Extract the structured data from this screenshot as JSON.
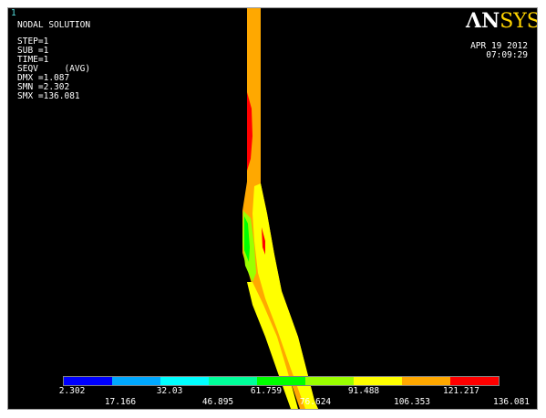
{
  "window": {
    "number": "1"
  },
  "solution_info": {
    "title": "NODAL SOLUTION",
    "lines": [
      "STEP=1",
      "SUB =1",
      "TIME=1",
      "SEQV     (AVG)",
      "DMX =1.087",
      "SMN =2.302",
      "SMX =136.081"
    ]
  },
  "logo": {
    "text_main": "ΛN",
    "text_accent": "SYS"
  },
  "timestamp": {
    "date": "APR 19 2012",
    "time": "07:09:29"
  },
  "legend": {
    "colors": [
      "#0000ff",
      "#00a8ff",
      "#00ffff",
      "#00ff9a",
      "#00ff00",
      "#9aff00",
      "#ffff00",
      "#ffa800",
      "#ff0000"
    ],
    "upper_labels": [
      "2.302",
      "32.03",
      "61.759",
      "91.488",
      "121.217"
    ],
    "lower_labels": [
      "17.166",
      "46.895",
      "76.624",
      "106.353",
      "136.081"
    ]
  },
  "colors": {
    "background": "#000000",
    "orange": "#ffa800",
    "yellow": "#ffff00",
    "red": "#ff0000",
    "green": "#00ff00",
    "lime": "#9aff00"
  }
}
